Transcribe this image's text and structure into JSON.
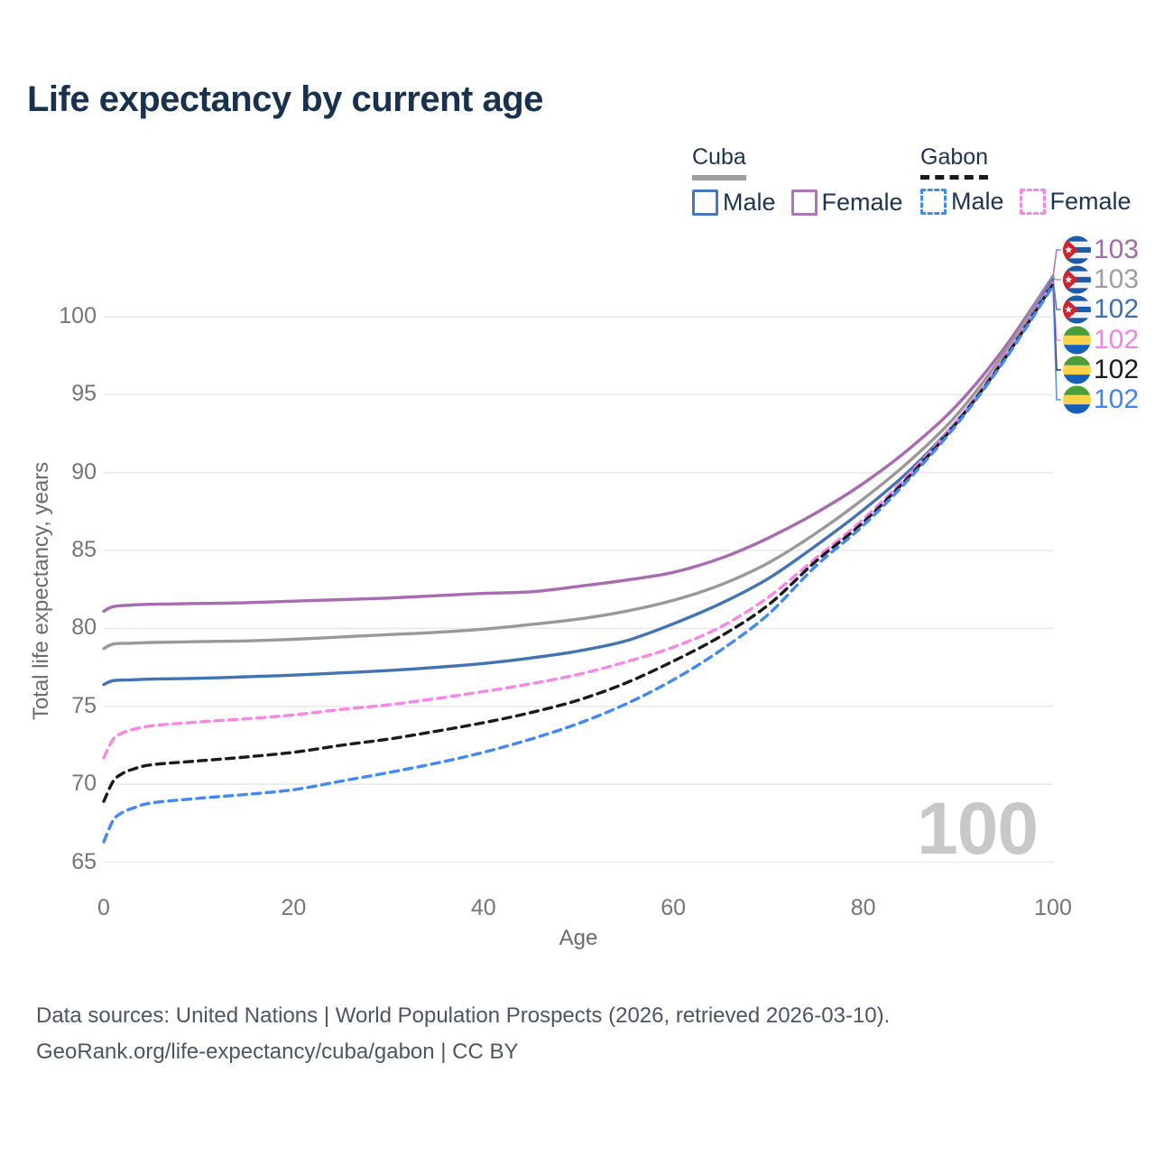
{
  "title": "Life expectancy by current age",
  "watermark": "100",
  "footer": {
    "line1": "Data sources: United Nations | World Population Prospects (2026, retrieved 2026-03-10).",
    "line2": "GeoRank.org/life-expectancy/cuba/gabon | CC BY"
  },
  "legend": {
    "groups": [
      {
        "name": "Cuba",
        "line_style": "solid",
        "underline_color": "#9e9e9e",
        "items": [
          {
            "label": "Male",
            "color": "#4478bb",
            "dashed": false
          },
          {
            "label": "Female",
            "color": "#b072b8",
            "dashed": false
          }
        ]
      },
      {
        "name": "Gabon",
        "line_style": "dashed",
        "underline_color": "#1a1a1a",
        "items": [
          {
            "label": "Male",
            "color": "#4189f5",
            "dashed": true
          },
          {
            "label": "Female",
            "color": "#fb85e4",
            "dashed": true
          }
        ]
      }
    ]
  },
  "chart_data": {
    "type": "line",
    "title": "Life expectancy by current age",
    "xlabel": "Age",
    "ylabel": "Total life expectancy, years",
    "xlim": [
      0,
      100
    ],
    "ylim": [
      65,
      100
    ],
    "x_ticks": [
      0,
      20,
      40,
      60,
      80,
      100
    ],
    "y_ticks": [
      65,
      70,
      75,
      80,
      85,
      90,
      95,
      100
    ],
    "grid": "horizontal-only",
    "legend_position": "top-right",
    "series": [
      {
        "name": "Cuba Female",
        "country": "Cuba",
        "sex": "Female",
        "color": "#a86bb1",
        "dash": false,
        "flag": "cuba",
        "end_label": "103",
        "end_label_color": "#a567ad",
        "points": [
          [
            0,
            81.1
          ],
          [
            1,
            81.4
          ],
          [
            3,
            81.5
          ],
          [
            5,
            81.55
          ],
          [
            10,
            81.6
          ],
          [
            15,
            81.65
          ],
          [
            20,
            81.75
          ],
          [
            25,
            81.85
          ],
          [
            30,
            81.95
          ],
          [
            35,
            82.1
          ],
          [
            40,
            82.25
          ],
          [
            45,
            82.35
          ],
          [
            50,
            82.7
          ],
          [
            55,
            83.1
          ],
          [
            60,
            83.6
          ],
          [
            65,
            84.5
          ],
          [
            70,
            85.8
          ],
          [
            75,
            87.4
          ],
          [
            80,
            89.3
          ],
          [
            85,
            91.6
          ],
          [
            90,
            94.4
          ],
          [
            95,
            98.1
          ],
          [
            100,
            102.6
          ]
        ]
      },
      {
        "name": "Cuba Both sexes",
        "country": "Cuba",
        "sex": "Both",
        "color": "#999999",
        "dash": false,
        "flag": "cuba",
        "end_label": "103",
        "end_label_color": "#9e9e9e",
        "points": [
          [
            0,
            78.7
          ],
          [
            1,
            79.0
          ],
          [
            3,
            79.05
          ],
          [
            5,
            79.1
          ],
          [
            10,
            79.15
          ],
          [
            15,
            79.2
          ],
          [
            20,
            79.3
          ],
          [
            25,
            79.45
          ],
          [
            30,
            79.6
          ],
          [
            35,
            79.75
          ],
          [
            40,
            79.95
          ],
          [
            45,
            80.25
          ],
          [
            50,
            80.6
          ],
          [
            55,
            81.1
          ],
          [
            60,
            81.8
          ],
          [
            65,
            82.8
          ],
          [
            70,
            84.2
          ],
          [
            75,
            86.1
          ],
          [
            80,
            88.3
          ],
          [
            85,
            90.8
          ],
          [
            90,
            93.8
          ],
          [
            95,
            97.8
          ],
          [
            100,
            102.5
          ]
        ]
      },
      {
        "name": "Cuba Male",
        "country": "Cuba",
        "sex": "Male",
        "color": "#4273b3",
        "dash": false,
        "flag": "cuba",
        "end_label": "102",
        "end_label_color": "#3c6fb5",
        "points": [
          [
            0,
            76.4
          ],
          [
            1,
            76.65
          ],
          [
            3,
            76.7
          ],
          [
            5,
            76.75
          ],
          [
            10,
            76.8
          ],
          [
            15,
            76.9
          ],
          [
            20,
            77.0
          ],
          [
            25,
            77.15
          ],
          [
            30,
            77.3
          ],
          [
            35,
            77.5
          ],
          [
            40,
            77.75
          ],
          [
            45,
            78.1
          ],
          [
            50,
            78.55
          ],
          [
            55,
            79.2
          ],
          [
            60,
            80.3
          ],
          [
            65,
            81.6
          ],
          [
            70,
            83.2
          ],
          [
            75,
            85.3
          ],
          [
            80,
            87.6
          ],
          [
            85,
            90.2
          ],
          [
            90,
            93.4
          ],
          [
            95,
            97.4
          ],
          [
            100,
            102.4
          ]
        ]
      },
      {
        "name": "Gabon Female",
        "country": "Gabon",
        "sex": "Female",
        "color": "#fb85e4",
        "dash": true,
        "flag": "gabon",
        "end_label": "102",
        "end_label_color": "#f77fe8",
        "points": [
          [
            0,
            71.7
          ],
          [
            1,
            72.9
          ],
          [
            2,
            73.3
          ],
          [
            3,
            73.5
          ],
          [
            5,
            73.75
          ],
          [
            10,
            74.0
          ],
          [
            15,
            74.2
          ],
          [
            20,
            74.45
          ],
          [
            25,
            74.8
          ],
          [
            30,
            75.1
          ],
          [
            35,
            75.5
          ],
          [
            40,
            75.95
          ],
          [
            45,
            76.45
          ],
          [
            50,
            77.05
          ],
          [
            55,
            77.85
          ],
          [
            60,
            78.8
          ],
          [
            65,
            80.1
          ],
          [
            70,
            82.0
          ],
          [
            75,
            84.5
          ],
          [
            80,
            87.0
          ],
          [
            85,
            90.0
          ],
          [
            90,
            93.4
          ],
          [
            95,
            97.5
          ],
          [
            100,
            102.2
          ]
        ]
      },
      {
        "name": "Gabon Both sexes",
        "country": "Gabon",
        "sex": "Both",
        "color": "#1a1a1a",
        "dash": true,
        "flag": "gabon",
        "end_label": "102",
        "end_label_color": "#1a1a1a",
        "points": [
          [
            0,
            68.9
          ],
          [
            1,
            70.2
          ],
          [
            2,
            70.7
          ],
          [
            3,
            70.95
          ],
          [
            5,
            71.25
          ],
          [
            10,
            71.5
          ],
          [
            15,
            71.75
          ],
          [
            20,
            72.05
          ],
          [
            25,
            72.5
          ],
          [
            30,
            72.9
          ],
          [
            35,
            73.4
          ],
          [
            40,
            73.95
          ],
          [
            45,
            74.6
          ],
          [
            50,
            75.4
          ],
          [
            55,
            76.5
          ],
          [
            60,
            77.9
          ],
          [
            65,
            79.5
          ],
          [
            70,
            81.5
          ],
          [
            75,
            84.3
          ],
          [
            80,
            86.8
          ],
          [
            85,
            89.85
          ],
          [
            90,
            93.3
          ],
          [
            95,
            97.4
          ],
          [
            100,
            102.1
          ]
        ]
      },
      {
        "name": "Gabon Male",
        "country": "Gabon",
        "sex": "Male",
        "color": "#4189f5",
        "dash": true,
        "flag": "gabon",
        "end_label": "102",
        "end_label_color": "#3d85f0",
        "points": [
          [
            0,
            66.3
          ],
          [
            1,
            67.7
          ],
          [
            2,
            68.2
          ],
          [
            3,
            68.45
          ],
          [
            5,
            68.8
          ],
          [
            10,
            69.1
          ],
          [
            15,
            69.35
          ],
          [
            20,
            69.65
          ],
          [
            25,
            70.2
          ],
          [
            30,
            70.75
          ],
          [
            35,
            71.35
          ],
          [
            40,
            72.05
          ],
          [
            45,
            72.9
          ],
          [
            50,
            73.9
          ],
          [
            55,
            75.15
          ],
          [
            60,
            76.7
          ],
          [
            65,
            78.6
          ],
          [
            70,
            80.9
          ],
          [
            75,
            84.0
          ],
          [
            80,
            86.6
          ],
          [
            85,
            89.7
          ],
          [
            90,
            93.2
          ],
          [
            95,
            97.3
          ],
          [
            100,
            102.0
          ]
        ]
      }
    ]
  }
}
